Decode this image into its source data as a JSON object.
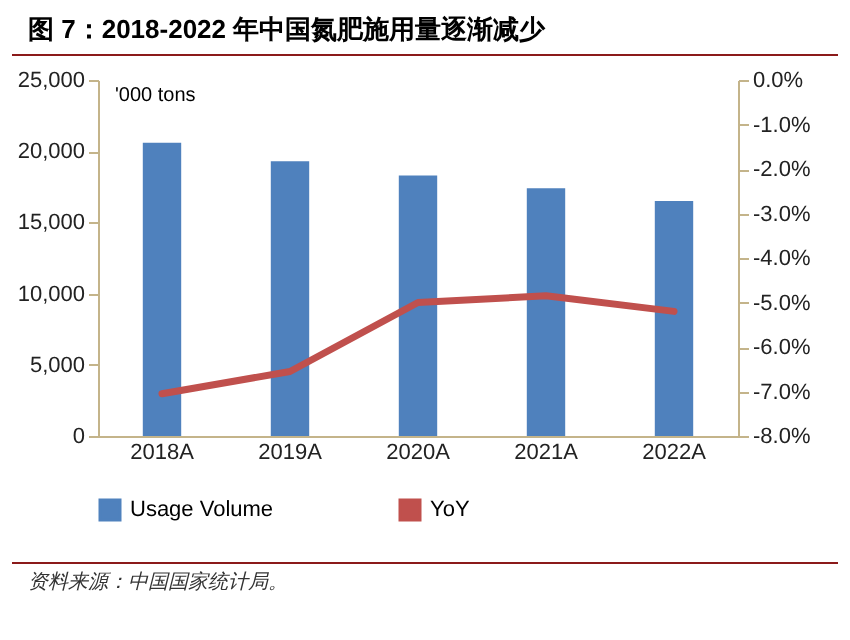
{
  "chart_data": {
    "type": "bar",
    "title": "图 7：2018-2022 年中国氮肥施用量逐渐减少",
    "ylabel": "'000 tons",
    "categories": [
      "2018A",
      "2019A",
      "2020A",
      "2021A",
      "2022A"
    ],
    "series": [
      {
        "name": "Usage Volume",
        "color": "#4f81bd",
        "values": [
          20600,
          19300,
          18300,
          17400,
          16500
        ]
      },
      {
        "name": "YoY",
        "type": "line",
        "axis": "y2",
        "color": "#c0504d",
        "values": [
          -7.05,
          -6.55,
          -5.0,
          -4.85,
          -5.2
        ]
      }
    ],
    "ylim": [
      0,
      25000
    ],
    "yticks": [
      0,
      {
        "value": 5000,
        "label": "5,000"
      },
      {
        "value": 10000,
        "label": "10,000"
      },
      {
        "value": 15000,
        "label": "15,000"
      },
      {
        "value": 20000,
        "label": "20,000"
      },
      {
        "value": 25000,
        "label": "25,000"
      }
    ],
    "y2lim": [
      -8,
      0
    ],
    "y2ticks": [
      {
        "value": -8,
        "label": "-8.0%"
      },
      {
        "value": -7,
        "label": "-7.0%"
      },
      {
        "value": -6,
        "label": "-6.0%"
      },
      {
        "value": -5,
        "label": "-5.0%"
      },
      {
        "value": -4,
        "label": "-4.0%"
      },
      {
        "value": -3,
        "label": "-3.0%"
      },
      {
        "value": -2,
        "label": "-2.0%"
      },
      {
        "value": -1,
        "label": "-1.0%"
      },
      {
        "value": 0,
        "label": "0.0%"
      }
    ],
    "legend": "bottom",
    "grid": false,
    "annotations": [
      "资料来源：中国国家统计局。"
    ]
  }
}
